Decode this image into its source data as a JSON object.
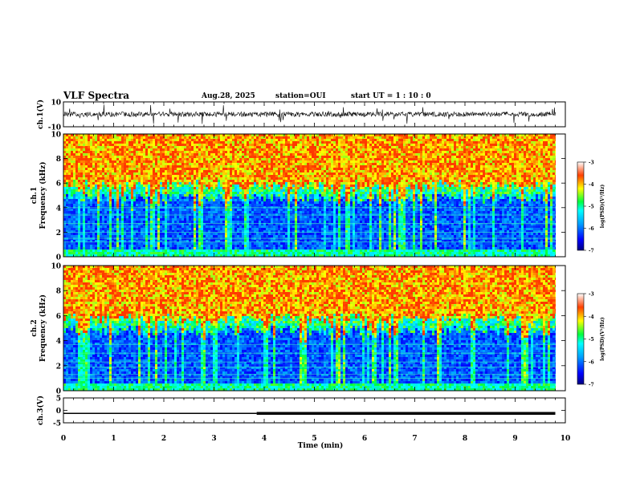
{
  "header": {
    "title": "VLF Spectra",
    "date": "Aug.28, 2025",
    "station": "station=OUI",
    "start": "start  UT =   1 : 10 : 0"
  },
  "chart_data": [
    {
      "type": "line",
      "name": "ch1-waveform",
      "ylabel": "ch.1(V)",
      "ylim": [
        -10,
        10
      ],
      "yticks": [
        "10",
        "-10"
      ],
      "xlim": [
        0,
        10
      ]
    },
    {
      "type": "heatmap",
      "name": "ch1-spectrogram",
      "ylabel": "ch.1\nFrequency (kHz)",
      "ylim": [
        0,
        10
      ],
      "yticks": [
        "0",
        "2",
        "4",
        "6",
        "8",
        "10"
      ],
      "xlim": [
        0,
        9.8
      ],
      "colorbar": {
        "label": "log(PSD)(V²/Hz)",
        "ticks": [
          "-3",
          "-4",
          "-5",
          "-6",
          "-7"
        ],
        "range": [
          -7,
          -3
        ]
      }
    },
    {
      "type": "heatmap",
      "name": "ch2-spectrogram",
      "ylabel": "ch.2\nFrequency (kHz)",
      "ylim": [
        0,
        10
      ],
      "yticks": [
        "0",
        "2",
        "4",
        "6",
        "8",
        "10"
      ],
      "xlim": [
        0,
        9.8
      ],
      "colorbar": {
        "label": "log(PSD)(V²/Hz)",
        "ticks": [
          "-3",
          "-4",
          "-5",
          "-6",
          "-7"
        ],
        "range": [
          -7,
          -3
        ]
      }
    },
    {
      "type": "line",
      "name": "ch3-trace",
      "ylabel": "ch.3(V)",
      "ylim": [
        -5,
        5
      ],
      "yticks": [
        "5",
        "0",
        "-5"
      ],
      "x": [
        0,
        3.85,
        3.85,
        9.8
      ],
      "y": [
        -1.2,
        -1.2,
        -1.2,
        -1.2
      ],
      "xlabel": "Time (min)",
      "xlim": [
        0,
        10
      ],
      "xticks": [
        "0",
        "1",
        "2",
        "3",
        "4",
        "5",
        "6",
        "7",
        "8",
        "9",
        "10"
      ]
    }
  ]
}
